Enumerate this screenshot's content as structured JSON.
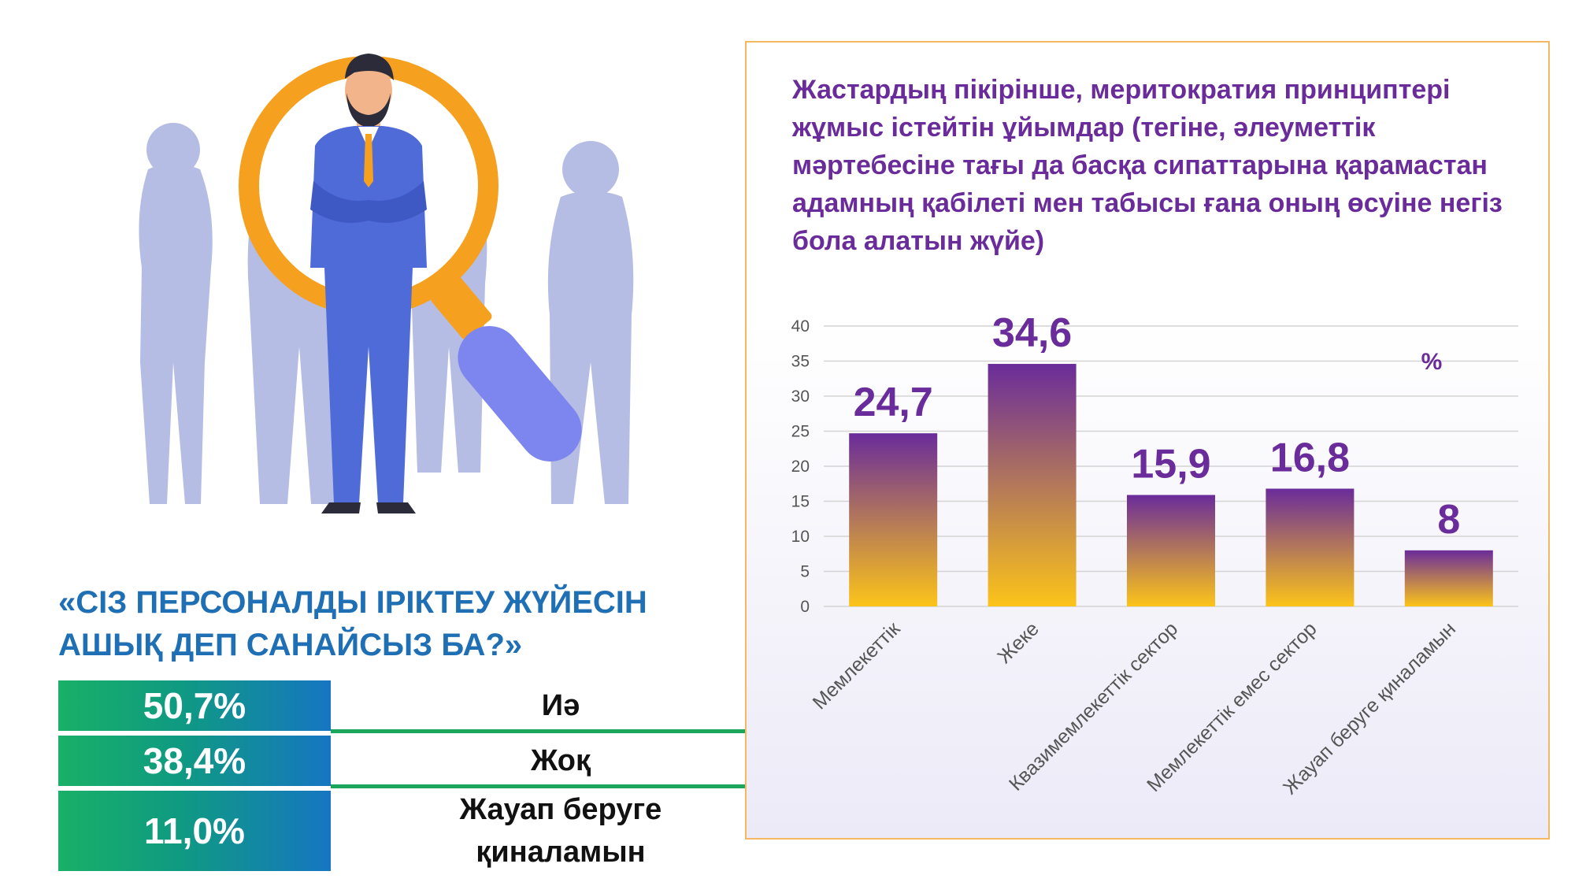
{
  "survey": {
    "question": "«СІЗ ПЕРСОНАЛДЫ ІРІКТЕУ ЖҮЙЕСІН\nАШЫҚ ДЕП САНАЙСЫЗ БА?»",
    "answers": [
      {
        "percent": "50,7%",
        "label": "Иә"
      },
      {
        "percent": "38,4%",
        "label": "Жоқ"
      },
      {
        "percent": "11,0%",
        "label": "Жауап беруге қиналамын"
      }
    ]
  },
  "chart_data": {
    "type": "bar",
    "title": "Жастардың пікірінше, меритократия принциптері жұмыс істейтін ұйымдар (тегіне, әлеуметтік мәртебесіне тағы да басқа сипаттарына қарамастан адамның қабілеті мен табысы ғана оның өсуіне негіз бола алатын жүйе)",
    "unit": "%",
    "categories": [
      "Мемлекеттік",
      "Жеке",
      "Квазимемлекеттік сектор",
      "Мемлекеттік емес сектор",
      "Жауап беруге қиналамын"
    ],
    "values": [
      24.7,
      34.6,
      15.9,
      16.8,
      8
    ],
    "data_labels": [
      "24,7",
      "34,6",
      "15,9",
      "16,8",
      "8"
    ],
    "yticks": [
      0,
      5,
      10,
      15,
      20,
      25,
      30,
      35,
      40
    ],
    "ylim": [
      0,
      40
    ],
    "grid": true,
    "colors": {
      "bar_top": "#6a2c9a",
      "bar_bottom": "#fcc419",
      "label": "#6a2c9a",
      "tick": "#555555",
      "grid": "#d4d4d4"
    }
  },
  "icons": [
    "magnifier-icon",
    "businessman-icon",
    "people-silhouettes-icon"
  ]
}
